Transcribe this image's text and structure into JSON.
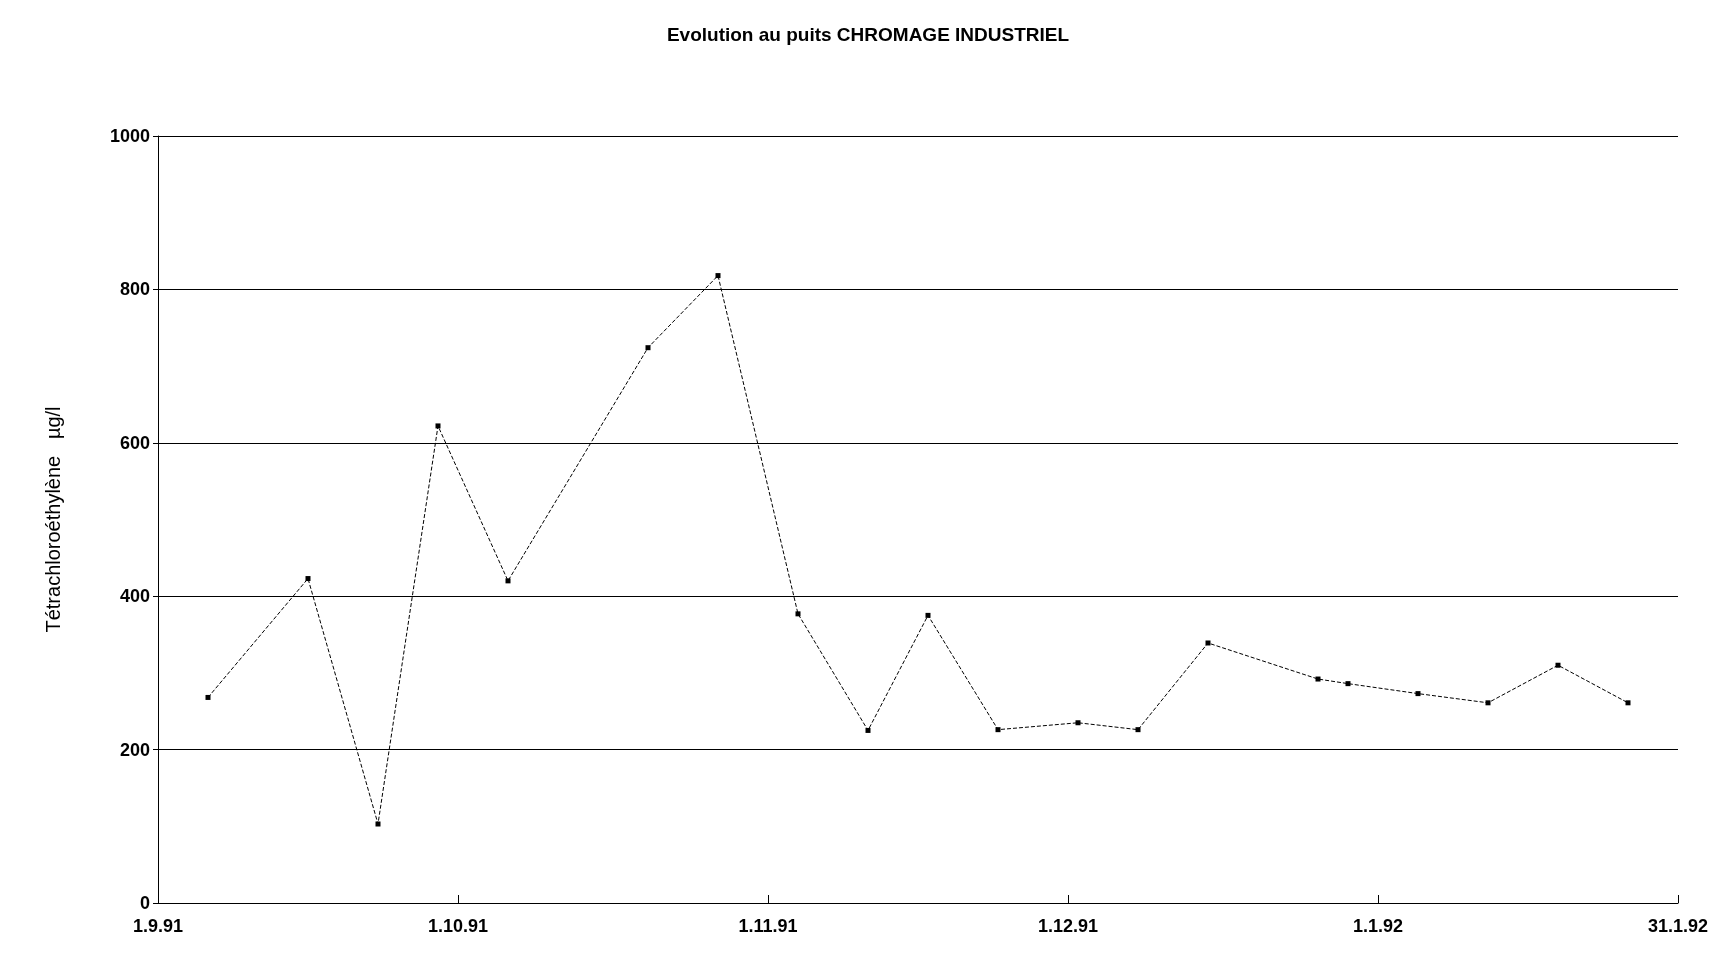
{
  "chart_data": {
    "type": "line",
    "title": "Evolution au puits CHROMAGE INDUSTRIEL",
    "ylabel": "Tétrachloroéthylène   µg/l",
    "x": [
      "1991-09-06",
      "1991-09-16",
      "1991-09-23",
      "1991-09-29",
      "1991-10-06",
      "1991-10-20",
      "1991-10-27",
      "1991-11-04",
      "1991-11-11",
      "1991-11-17",
      "1991-11-24",
      "1991-12-02",
      "1991-12-08",
      "1991-12-15",
      "1991-12-26",
      "1991-12-29",
      "1992-01-05",
      "1992-01-12",
      "1992-01-19",
      "1992-01-26"
    ],
    "series": [
      {
        "color": "#000000",
        "values": [
          268,
          423,
          103,
          622,
          420,
          724,
          818,
          377,
          225,
          375,
          226,
          235,
          226,
          339,
          292,
          286,
          273,
          261,
          310,
          261
        ]
      }
    ],
    "xlim": [
      "1991-09-01",
      "1992-01-31"
    ],
    "xticks": [
      {
        "value": "1991-09-01",
        "label": "1.9.91"
      },
      {
        "value": "1991-10-01",
        "label": "1.10.91"
      },
      {
        "value": "1991-11-01",
        "label": "1.11.91"
      },
      {
        "value": "1991-12-01",
        "label": "1.12.91"
      },
      {
        "value": "1992-01-01",
        "label": "1.1.92"
      },
      {
        "value": "1992-01-31",
        "label": "31.1.92"
      }
    ],
    "ylim": [
      0,
      1000
    ],
    "yticks": [
      0,
      200,
      400,
      600,
      800,
      1000
    ],
    "grid": "y",
    "marker": "square",
    "line_style": "dashed"
  }
}
